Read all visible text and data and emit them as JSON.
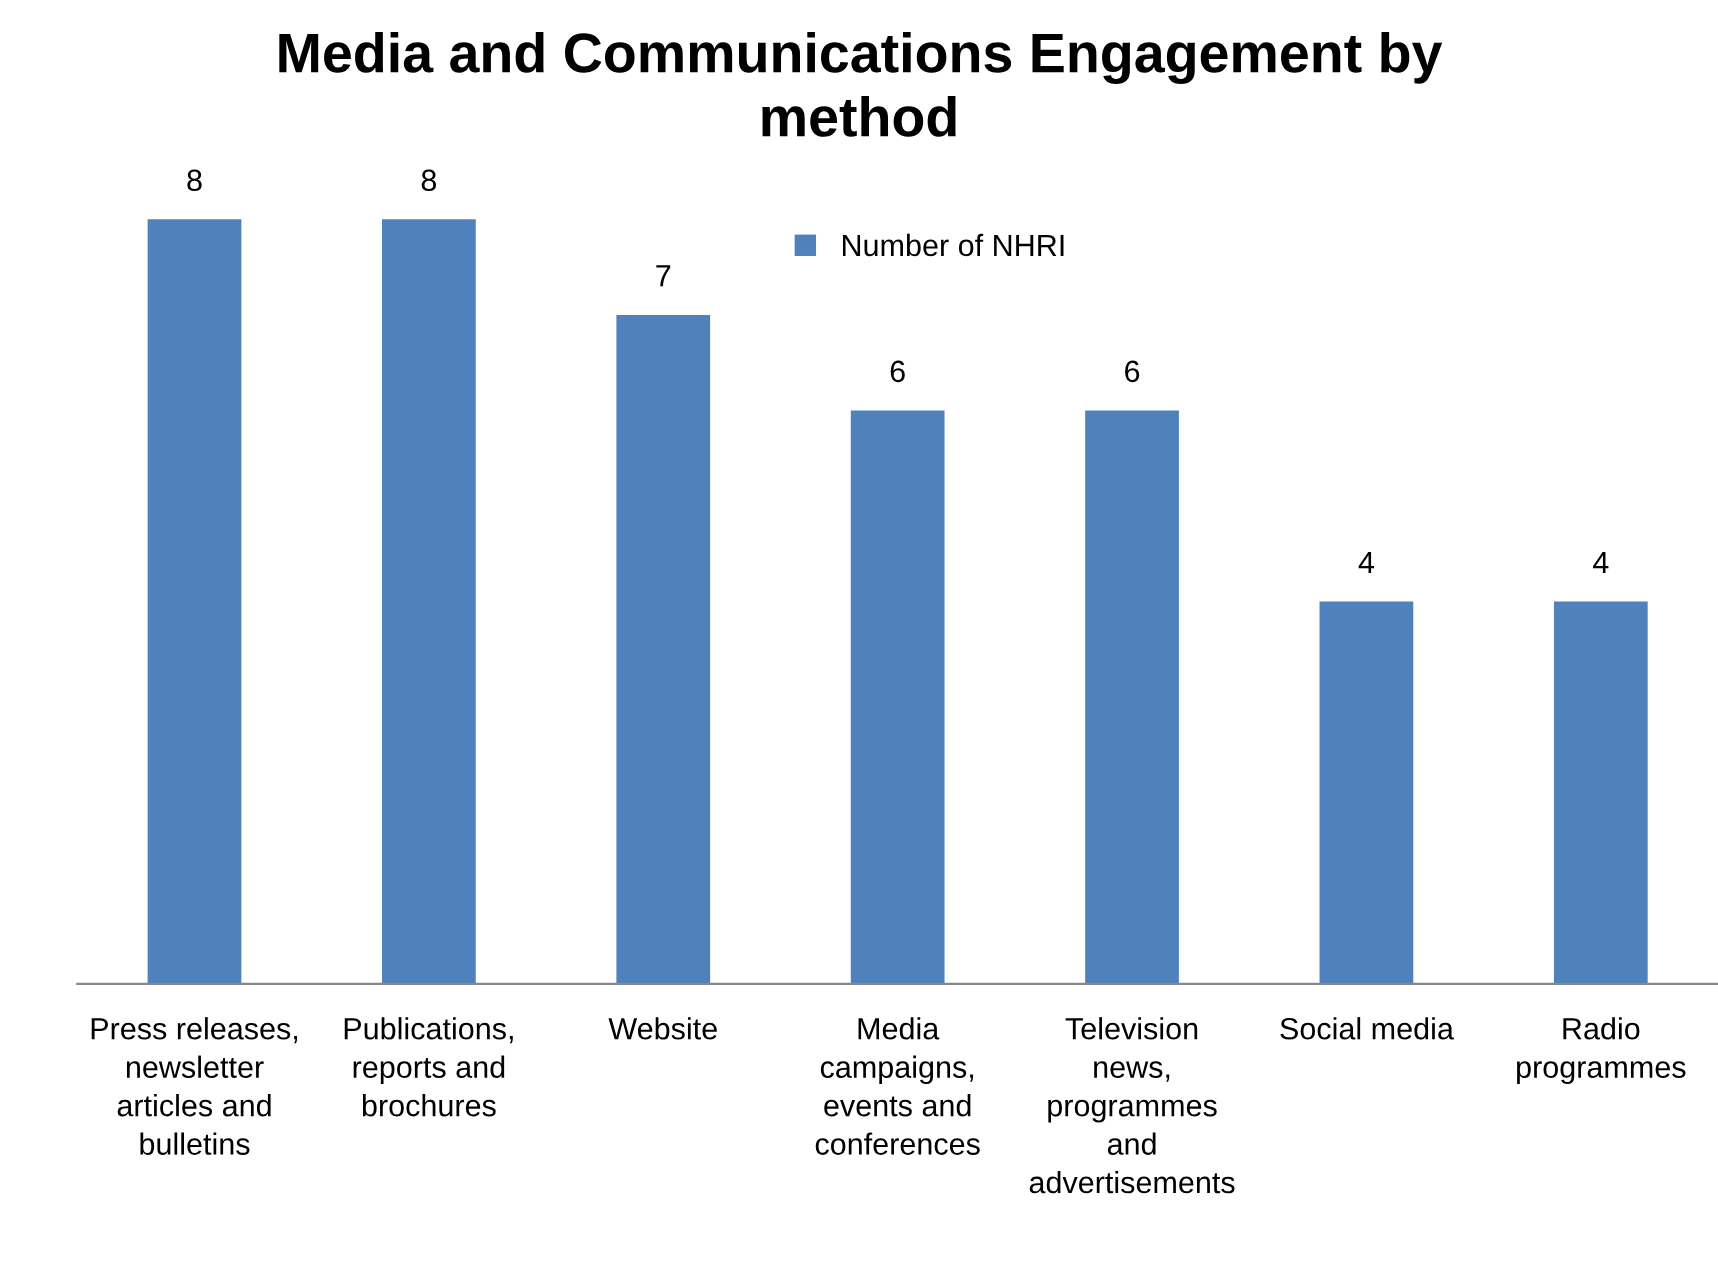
{
  "chart_data": {
    "type": "bar",
    "title": "Media and Communications Engagement by\nmethod",
    "categories": [
      "Press releases,\nnewsletter\narticles and\nbulletins",
      "Publications,\nreports and\nbrochures",
      "Website",
      "Media\ncampaigns,\nevents and\nconferences",
      "Television\nnews,\nprogrammes\nand\nadvertisements",
      "Social media",
      "Radio\nprogrammes"
    ],
    "series": [
      {
        "name": "Number of NHRI",
        "color": "#4f81bd",
        "values": [
          8,
          8,
          7,
          6,
          6,
          4,
          4
        ]
      }
    ],
    "data_labels": true,
    "legend": "top",
    "grid": false
  }
}
